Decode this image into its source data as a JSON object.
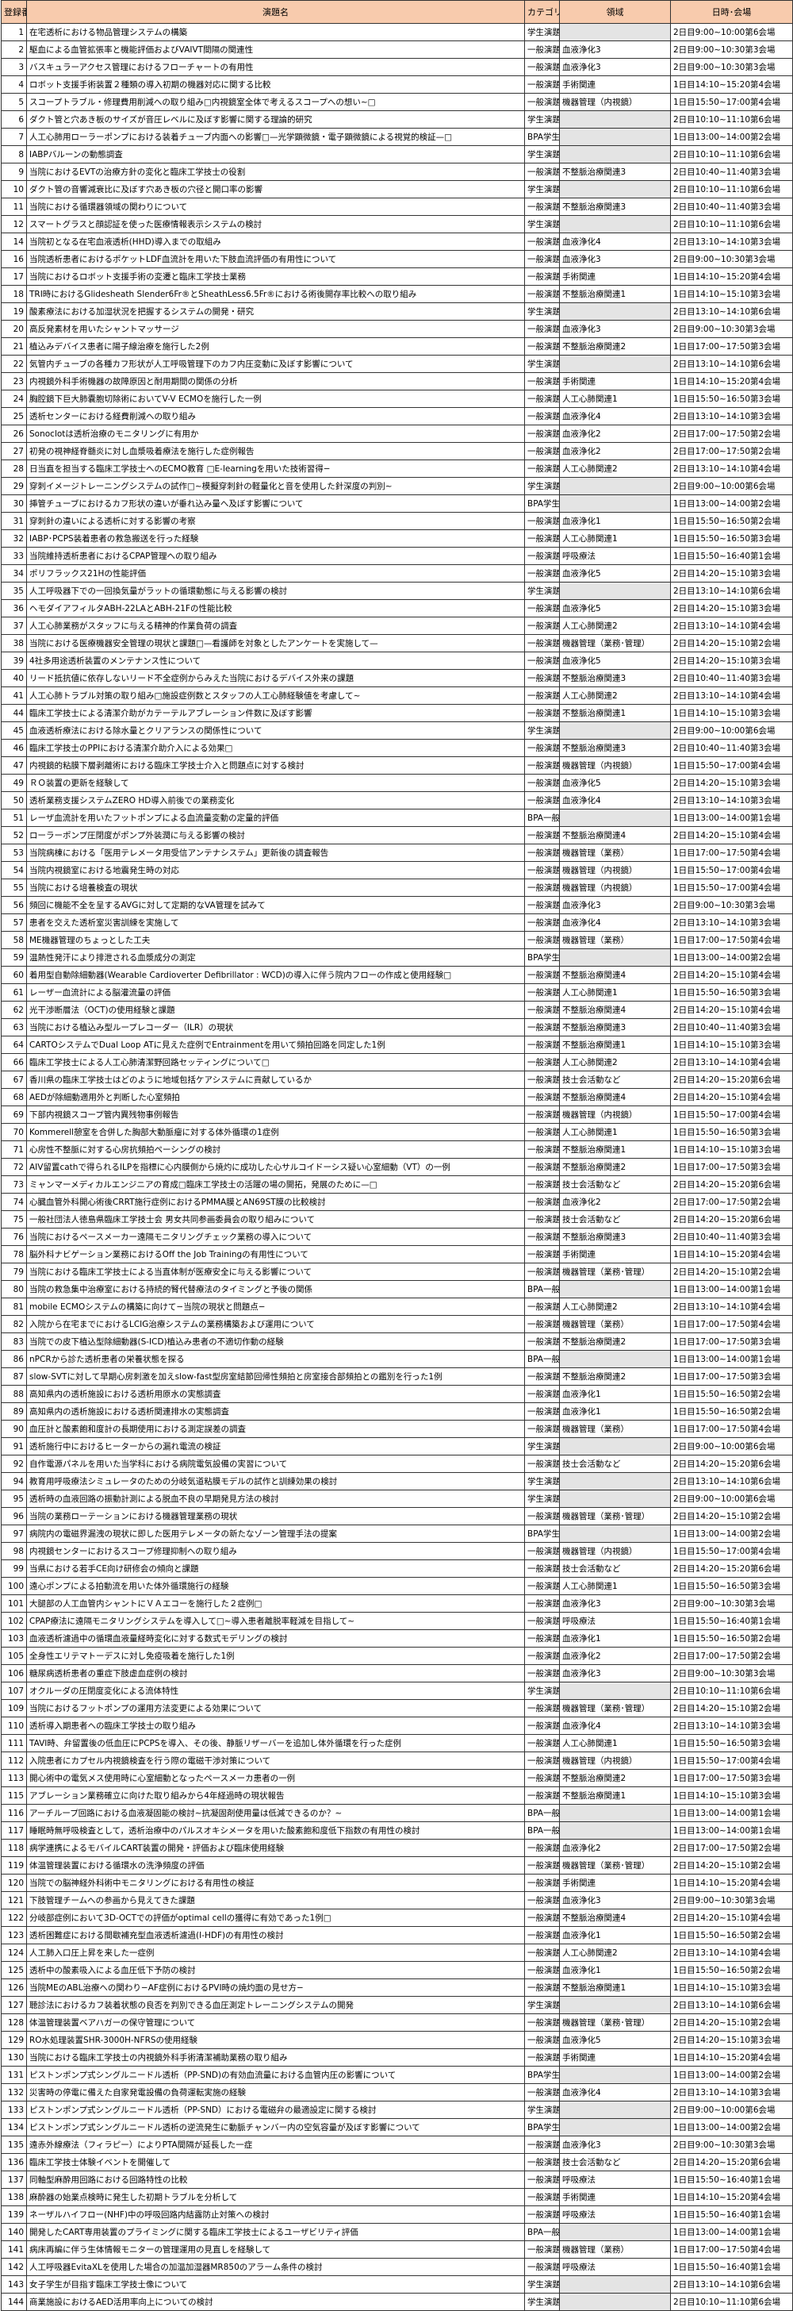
{
  "header": {
    "number": "登録番号",
    "title": "演題名",
    "category": "カテゴリー",
    "field": "領域",
    "datetime": "日時･会場"
  },
  "colors": {
    "header_bg": "#f8cbad",
    "empty_cell_bg": "#e4e4e4"
  },
  "rows": [
    [
      "1",
      "在宅透析における物品管理システムの構築",
      "学生演題",
      "",
      "2日目9:00~10:00第6会場"
    ],
    [
      "2",
      "駆血による血管拡張率と機能評価およびVAIVT間隔の関連性",
      "一般演題",
      "血液浄化3",
      "2日目9:00~10:30第3会場"
    ],
    [
      "3",
      "バスキュラーアクセス管理におけるフローチャートの有用性",
      "一般演題",
      "血液浄化3",
      "2日目9:00~10:30第3会場"
    ],
    [
      "4",
      "ロボット支援手術装置２種類の導入初期の機器対応に関する比較",
      "一般演題",
      "手術関連",
      "1日目14:10~15:20第4会場"
    ],
    [
      "5",
      "スコープトラブル・修理費用削減への取り組み□内視鏡室全体で考えるスコープへの想い~□",
      "一般演題",
      "機器管理（内視鏡）",
      "1日目15:50~17:00第4会場"
    ],
    [
      "6",
      "ダクト管と穴あき板のサイズが音圧レベルに及ぼす影響に関する理論的研究",
      "学生演題",
      "",
      "2日目10:10~11:10第6会場"
    ],
    [
      "7",
      "人工心肺用ローラーポンプにおける装着チューブ内面への影響□—光学顕微鏡・電子顕微鏡による視覚的検証—□",
      "BPA学生",
      "",
      "1日目13:00~14:00第2会場"
    ],
    [
      "8",
      "IABPバルーンの動態調査",
      "学生演題",
      "",
      "2日目10:10~11:10第6会場"
    ],
    [
      "9",
      "当院におけるEVTの治療方針の変化と臨床工学技士の役割",
      "一般演題",
      "不整脈治療関連3",
      "2日目10:40~11:40第3会場"
    ],
    [
      "10",
      "ダクト管の音響減衰比に及ぼす穴あき板の穴径と開口率の影響",
      "学生演題",
      "",
      "2日目10:10~11:10第6会場"
    ],
    [
      "11",
      "当院における循環器領域の関わりについて",
      "一般演題",
      "不整脈治療関連3",
      "2日目10:40~11:40第3会場"
    ],
    [
      "12",
      "スマートグラスと顔認証を使った医療情報表示システムの検討",
      "学生演題",
      "",
      "2日目10:10~11:10第6会場"
    ],
    [
      "14",
      "当院初となる在宅血液透析(HHD)導入までの取組み",
      "一般演題",
      "血液浄化4",
      "2日目13:10~14:10第3会場"
    ],
    [
      "16",
      "当院透析患者におけるポケットLDF血流計を用いた下肢血流評価の有用性について",
      "一般演題",
      "血液浄化3",
      "2日目9:00~10:30第3会場"
    ],
    [
      "17",
      "当院におけるロボット支援手術の変遷と臨床工学技士業務",
      "一般演題",
      "手術関連",
      "1日目14:10~15:20第4会場"
    ],
    [
      "18",
      "TRI時におけるGlidesheath Slender6Fr®とSheathLess6.5Fr®における術後開存率比較への取り組み",
      "一般演題",
      "不整脈治療関連1",
      "1日目14:10~15:10第3会場"
    ],
    [
      "19",
      "酸素療法における加湿状況を把握するシステムの開発・研究",
      "学生演題",
      "",
      "2日目13:10~14:10第6会場"
    ],
    [
      "20",
      "高反発素材を用いたシャントマッサージ",
      "一般演題",
      "血液浄化3",
      "2日目9:00~10:30第3会場"
    ],
    [
      "21",
      "植込みデバイス患者に陽子線治療を施行した2例",
      "一般演題",
      "不整脈治療関連2",
      "1日目17:00~17:50第3会場"
    ],
    [
      "22",
      "気管内チューブの各種カフ形状が人工呼吸管理下のカフ内圧変動に及ぼす影響について",
      "学生演題",
      "",
      "2日目13:10~14:10第6会場"
    ],
    [
      "23",
      "内視鏡外科手術機器の故障原因と耐用期間の関係の分析",
      "一般演題",
      "手術関連",
      "1日目14:10~15:20第4会場"
    ],
    [
      "24",
      "胸腔鏡下巨大肺嚢胞切除術においてV-V ECMOを施行した一例",
      "一般演題",
      "人工心肺関連1",
      "1日目15:50~16:50第3会場"
    ],
    [
      "25",
      "透析センターにおける経費削減への取り組み",
      "一般演題",
      "血液浄化4",
      "2日目13:10~14:10第3会場"
    ],
    [
      "26",
      "Sonoclotは透析治療のモニタリングに有用か",
      "一般演題",
      "血液浄化2",
      "2日目17:00~17:50第2会場"
    ],
    [
      "27",
      "初発の視神経脊髄炎に対し血漿吸着療法を施行した症例報告",
      "一般演題",
      "血液浄化2",
      "2日目17:00~17:50第2会場"
    ],
    [
      "28",
      "日当直を担当する臨床工学技士へのECMO教育 □E-learningを用いた技術習得−",
      "一般演題",
      "人工心肺関連2",
      "2日目13:10~14:10第4会場"
    ],
    [
      "29",
      "穿刺イメージトレーニングシステムの試作□~模擬穿刺針の軽量化と音を使用した針深度の判別~",
      "学生演題",
      "",
      "2日目9:00~10:00第6会場"
    ],
    [
      "30",
      "挿管チューブにおけるカフ形状の違いが垂れ込み量へ及ぼす影響について",
      "BPA学生",
      "",
      "1日目13:00~14:00第2会場"
    ],
    [
      "31",
      "穿刺針の違いによる透析に対する影響の考察",
      "一般演題",
      "血液浄化1",
      "1日目15:50~16:50第2会場"
    ],
    [
      "32",
      "IABP･PCPS装着患者の救急搬送を行った経験",
      "一般演題",
      "人工心肺関連1",
      "1日目15:50~16:50第3会場"
    ],
    [
      "33",
      "当院維持透析患者におけるCPAP管理への取り組み",
      "一般演題",
      "呼吸療法",
      "1日目15:50~16:40第1会場"
    ],
    [
      "34",
      "ポリフラックス21Hの性能評価",
      "一般演題",
      "血液浄化5",
      "2日目14:20~15:10第3会場"
    ],
    [
      "35",
      "人工呼吸器下での一回換気量がラットの循環動態に与える影響の検討",
      "学生演題",
      "",
      "2日目13:10~14:10第6会場"
    ],
    [
      "36",
      "ヘモダイアフィルタABH-22LAとABH-21Fの性能比較",
      "一般演題",
      "血液浄化5",
      "2日目14:20~15:10第3会場"
    ],
    [
      "37",
      "人工心肺業務がスタッフに与える精神的作業負荷の調査",
      "一般演題",
      "人工心肺関連2",
      "2日目13:10~14:10第4会場"
    ],
    [
      "38",
      "当院における医療機器安全管理の現状と課題□—看護師を対象としたアンケートを実施して—",
      "一般演題",
      "機器管理（業務･管理）",
      "2日目14:20~15:10第2会場"
    ],
    [
      "39",
      "4社多用途透析装置のメンテナンス性について",
      "一般演題",
      "血液浄化5",
      "2日目14:20~15:10第3会場"
    ],
    [
      "40",
      "リード抵抗値に依存しないリード不全症例からみえた当院におけるデバイス外来の課題",
      "一般演題",
      "不整脈治療関連3",
      "2日目10:40~11:40第3会場"
    ],
    [
      "41",
      "人工心肺トラブル対策の取り組み□施設症例数とスタッフの人工心肺経験値を考慮して~",
      "一般演題",
      "人工心肺関連2",
      "2日目13:10~14:10第4会場"
    ],
    [
      "44",
      "臨床工学技士による清潔介助がカテーテルアブレーション件数に及ぼす影響",
      "一般演題",
      "不整脈治療関連1",
      "1日目14:10~15:10第3会場"
    ],
    [
      "45",
      "血液透析療法における除水量とクリアランスの関係性について",
      "学生演題",
      "",
      "2日目9:00~10:00第6会場"
    ],
    [
      "46",
      "臨床工学技士のPPIにおける清潔介助介入による効果□",
      "一般演題",
      "不整脈治療関連3",
      "2日目10:40~11:40第3会場"
    ],
    [
      "47",
      "内視鏡的粘膜下層剥離術における臨床工学技士介入と問題点に対する検討",
      "一般演題",
      "機器管理（内視鏡）",
      "1日目15:50~17:00第4会場"
    ],
    [
      "49",
      "ＲＯ装置の更新を経験して",
      "一般演題",
      "血液浄化5",
      "2日目14:20~15:10第3会場"
    ],
    [
      "50",
      "透析業務支援システムZERO HD導入前後での業務変化",
      "一般演題",
      "血液浄化4",
      "2日目13:10~14:10第3会場"
    ],
    [
      "51",
      "レーザ血流計を用いたフットポンプによる血流量変動の定量的評価",
      "BPA一般",
      "",
      "1日目13:00~14:00第1会場"
    ],
    [
      "52",
      "ローラーポンプ圧閉度がポンプ外装潤に与える影響の検討",
      "一般演題",
      "不整脈治療関連4",
      "2日目14:20~15:10第4会場"
    ],
    [
      "53",
      "当院病棟における「医用テレメータ用受信アンテナシステム」更新後の調査報告",
      "一般演題",
      "機器管理（業務）",
      "1日目17:00~17:50第4会場"
    ],
    [
      "54",
      "当院内視鏡室における地震発生時の対応",
      "一般演題",
      "機器管理（内視鏡）",
      "1日目15:50~17:00第4会場"
    ],
    [
      "55",
      "当院における培養検査の現状",
      "一般演題",
      "機器管理（内視鏡）",
      "1日目15:50~17:00第4会場"
    ],
    [
      "56",
      "頻回に機能不全を呈するAVGに対して定期的なVA管理を試みて",
      "一般演題",
      "血液浄化3",
      "2日目9:00~10:30第3会場"
    ],
    [
      "57",
      "患者を交えた透析室災害訓練を実施して",
      "一般演題",
      "血液浄化4",
      "2日目13:10~14:10第3会場"
    ],
    [
      "58",
      "ME機器管理のちょっとした工夫",
      "一般演題",
      "機器管理（業務）",
      "1日目17:00~17:50第4会場"
    ],
    [
      "59",
      "温熱性発汗により排泄される血漿成分の測定",
      "BPA学生",
      "",
      "1日目13:00~14:00第2会場"
    ],
    [
      "60",
      "着用型自動除細動器(Wearable Cardioverter Defibrillator : WCD)の導入に伴う院内フローの作成と使用経験□",
      "一般演題",
      "不整脈治療関連4",
      "2日目14:20~15:10第4会場"
    ],
    [
      "61",
      "レーザー血流計による脳灌流量の評価",
      "一般演題",
      "人工心肺関連1",
      "1日目15:50~16:50第3会場"
    ],
    [
      "62",
      "光干渉断層法（OCT)の使用経験と課題",
      "一般演題",
      "不整脈治療関連4",
      "2日目14:20~15:10第4会場"
    ],
    [
      "63",
      "当院における植込み型ループレコーダー（ILR）の現状",
      "一般演題",
      "不整脈治療関連3",
      "2日目10:40~11:40第3会場"
    ],
    [
      "64",
      "CARTOシステムでDual Loop ATに見えた症例でEntrainmentを用いて頻拍回路を同定した1例",
      "一般演題",
      "不整脈治療関連1",
      "1日目14:10~15:10第3会場"
    ],
    [
      "66",
      "臨床工学技士による人工心肺清潔野回路セッティングについて□",
      "一般演題",
      "人工心肺関連2",
      "2日目13:10~14:10第4会場"
    ],
    [
      "67",
      "香川県の臨床工学技士はどのように地域包括ケアシステムに貢献しているか",
      "一般演題",
      "技士会活動など",
      "2日目14:20~15:20第6会場"
    ],
    [
      "68",
      "AEDが除細動適用外と判断した心室頻拍",
      "一般演題",
      "不整脈治療関連4",
      "2日目14:20~15:10第4会場"
    ],
    [
      "69",
      "下部内視鏡スコープ管内異残物事例報告",
      "一般演題",
      "機器管理（内視鏡）",
      "1日目15:50~17:00第4会場"
    ],
    [
      "70",
      "Kommerell憩室を合併した胸部大動脈瘤に対する体外循環の1症例",
      "一般演題",
      "人工心肺関連1",
      "1日目15:50~16:50第3会場"
    ],
    [
      "71",
      "心房性不整脈に対する心房抗頻拍ペーシングの検討",
      "一般演題",
      "不整脈治療関連1",
      "1日目14:10~15:10第3会場"
    ],
    [
      "72",
      "AIV留置cathで得られるILPを指標に心内膜側から焼灼に成功した心サルコイドーシス疑い心室細動（VT）の一例",
      "一般演題",
      "不整脈治療関連2",
      "1日目17:00~17:50第3会場"
    ],
    [
      "73",
      "ミャンマーメディカルエンジニアの育成□臨床工学技士の活躍の場の開拓，発展のために—□",
      "一般演題",
      "技士会活動など",
      "2日目14:20~15:20第6会場"
    ],
    [
      "74",
      "心臓血管外科開心術後CRRT施行症例におけるPMMA膜とAN69ST膜の比較検討",
      "一般演題",
      "血液浄化2",
      "2日目17:00~17:50第2会場"
    ],
    [
      "75",
      "一般社団法人徳島県臨床工学技士会 男女共同参画委員会の取り組みについて",
      "一般演題",
      "技士会活動など",
      "2日目14:20~15:20第6会場"
    ],
    [
      "76",
      "当院におけるペースメーカー遠隔モニタリングチェック業務の導入について",
      "一般演題",
      "不整脈治療関連3",
      "2日目10:40~11:40第3会場"
    ],
    [
      "78",
      "脳外科ナビゲーション業務におけるOff the Job Trainingの有用性について",
      "一般演題",
      "手術関連",
      "1日目14:10~15:20第4会場"
    ],
    [
      "79",
      "当院における臨床工学技士による当直体制が医療安全に与える影響について",
      "一般演題",
      "機器管理（業務･管理）",
      "2日目14:20~15:10第2会場"
    ],
    [
      "80",
      "当院の救急集中治療室における持続的腎代替療法のタイミングと予後の関係",
      "BPA一般",
      "",
      "1日目13:00~14:00第1会場"
    ],
    [
      "81",
      "mobile ECMOシステムの構築に向けて−当院の現状と問題点−",
      "一般演題",
      "人工心肺関連2",
      "2日目13:10~14:10第4会場"
    ],
    [
      "82",
      "入院から在宅までにおけるLCIG治療システムの業務構築および運用について",
      "一般演題",
      "機器管理（業務）",
      "1日目17:00~17:50第4会場"
    ],
    [
      "83",
      "当院での皮下植込型除細動器(S-ICD)植込み患者の不適切作動の経験",
      "一般演題",
      "不整脈治療関連2",
      "1日目17:00~17:50第3会場"
    ],
    [
      "86",
      "nPCRから診た透析患者の栄養状態を探る",
      "BPA一般",
      "",
      "1日目13:00~14:00第1会場"
    ],
    [
      "87",
      "slow-SVTに対して早期心房刺激を加えslow-fast型房室結節回帰性頻拍と房室接合部頻拍との鑑別を行った1例",
      "一般演題",
      "不整脈治療関連2",
      "1日目17:00~17:50第3会場"
    ],
    [
      "88",
      "高知県内の透析施設における透析用原水の実態調査",
      "一般演題",
      "血液浄化1",
      "1日目15:50~16:50第2会場"
    ],
    [
      "89",
      "高知県内の透析施設における透析関連排水の実態調査",
      "一般演題",
      "血液浄化1",
      "1日目15:50~16:50第2会場"
    ],
    [
      "90",
      "血圧計と酸素飽和度計の長期使用における測定誤差の調査",
      "一般演題",
      "機器管理（業務）",
      "1日目17:00~17:50第4会場"
    ],
    [
      "91",
      "透析施行中におけるヒーターからの漏れ電流の検証",
      "学生演題",
      "",
      "2日目9:00~10:00第6会場"
    ],
    [
      "92",
      "自作電源パネルを用いた当学科における病院電気設備の実習について",
      "一般演題",
      "技士会活動など",
      "2日目14:20~15:20第6会場"
    ],
    [
      "94",
      "教育用呼吸療法シミュレータのための分岐気道粘膜モデルの試作と訓練効果の検討",
      "学生演題",
      "",
      "2日目13:10~14:10第6会場"
    ],
    [
      "95",
      "透析時の血液回路の振動計測による脱血不良の早期発見方法の検討",
      "学生演題",
      "",
      "2日目9:00~10:00第6会場"
    ],
    [
      "96",
      "当院の業務ローテーションにおける機器管理業務の現状",
      "一般演題",
      "機器管理（業務･管理）",
      "2日目14:20~15:10第2会場"
    ],
    [
      "97",
      "病院内の電磁界漏洩の現状に即した医用テレメータの新たなゾーン管理手法の提案",
      "BPA学生",
      "",
      "1日目13:00~14:00第2会場"
    ],
    [
      "98",
      "内視鏡センターにおけるスコープ修理抑制への取り組み",
      "一般演題",
      "機器管理（内視鏡）",
      "1日目15:50~17:00第4会場"
    ],
    [
      "99",
      "当県における若手CE向け研修会の傾向と課題",
      "一般演題",
      "技士会活動など",
      "2日目14:20~15:20第6会場"
    ],
    [
      "100",
      "遠心ポンプによる拍動流を用いた体外循環施行の経験",
      "一般演題",
      "人工心肺関連1",
      "1日目15:50~16:50第3会場"
    ],
    [
      "101",
      "大腿部の人工血管内シャントにＶＡエコーを施行した２症例□",
      "一般演題",
      "血液浄化3",
      "2日目9:00~10:30第3会場"
    ],
    [
      "102",
      "CPAP療法に遠隔モニタリングシステムを導入して□~導入患者離脱率軽減を目指して~",
      "一般演題",
      "呼吸療法",
      "1日目15:50~16:40第1会場"
    ],
    [
      "103",
      "血液透析濾過中の循環血液量経時変化に対する数式モデリングの検討",
      "一般演題",
      "血液浄化1",
      "1日目15:50~16:50第2会場"
    ],
    [
      "105",
      "全身性エリテマトーデスに対し免疫吸着を施行した1例",
      "一般演題",
      "血液浄化2",
      "2日目17:00~17:50第2会場"
    ],
    [
      "106",
      "糖尿病透析患者の重症下肢虚血症例の検討",
      "一般演題",
      "血液浄化3",
      "2日目9:00~10:30第3会場"
    ],
    [
      "107",
      "オクルーダの圧閉度変化による流体特性",
      "学生演題",
      "",
      "2日目10:10~11:10第6会場"
    ],
    [
      "109",
      "当院におけるフットポンプの運用方法変更による効果について",
      "一般演題",
      "機器管理（業務･管理）",
      "2日目14:20~15:10第2会場"
    ],
    [
      "110",
      "透析導入期患者への臨床工学技士の取り組み",
      "一般演題",
      "血液浄化4",
      "2日目13:10~14:10第3会場"
    ],
    [
      "111",
      "TAVI時、弁留置後の低血圧にPCPSを導入、その後、静脈リザーバーを追加し体外循環を行った症例",
      "一般演題",
      "人工心肺関連1",
      "1日目15:50~16:50第3会場"
    ],
    [
      "112",
      "入院患者にカプセル内視鏡検査を行う際の電磁干渉対策について",
      "一般演題",
      "機器管理（内視鏡）",
      "1日目15:50~17:00第4会場"
    ],
    [
      "113",
      "開心術中の電気メス使用時に心室細動となったペースメーカ患者の一例",
      "一般演題",
      "不整脈治療関連2",
      "1日目17:00~17:50第3会場"
    ],
    [
      "115",
      "アブレーション業務確立に向けた取り組みから4年経過時の現状報告",
      "一般演題",
      "不整脈治療関連1",
      "1日目14:10~15:10第3会場"
    ],
    [
      "116",
      "アーチループ回路における血液凝固能の検討~抗凝固剤使用量は低減できるのか？~",
      "BPA一般",
      "",
      "1日目13:00~14:00第1会場"
    ],
    [
      "117",
      "睡眠時無呼吸検査として，透析治療中のパルスオキシメータを用いた酸素飽和度低下指数の有用性の検討",
      "BPA一般",
      "",
      "1日目13:00~14:00第1会場"
    ],
    [
      "118",
      "病学連携によるモバイルCART装置の開発・評価および臨床使用経験",
      "一般演題",
      "血液浄化2",
      "2日目17:00~17:50第2会場"
    ],
    [
      "119",
      "体温管理装置における循環水の洗浄頻度の評価",
      "一般演題",
      "機器管理（業務･管理）",
      "2日目14:20~15:10第2会場"
    ],
    [
      "120",
      "当院での脳神経外科術中モニタリングにおける有用性の検証",
      "一般演題",
      "手術関連",
      "1日目14:10~15:20第4会場"
    ],
    [
      "121",
      "下肢管理チームへの参画から見えてきた課題",
      "一般演題",
      "血液浄化3",
      "2日目9:00~10:30第3会場"
    ],
    [
      "122",
      "分岐部症例において3D-OCTでの評価がoptimal cellの獲得に有効であった1例□",
      "一般演題",
      "不整脈治療関連4",
      "2日目14:20~15:10第4会場"
    ],
    [
      "123",
      "透析困難症における間歇補充型血液透析濾過(I-HDF)の有用性の検討",
      "一般演題",
      "血液浄化1",
      "1日目15:50~16:50第2会場"
    ],
    [
      "124",
      "人工肺入口圧上昇を来した一症例",
      "一般演題",
      "人工心肺関連2",
      "2日目13:10~14:10第4会場"
    ],
    [
      "125",
      "透析中の酸素吸入による血圧低下予防の検討",
      "一般演題",
      "血液浄化1",
      "1日目15:50~16:50第2会場"
    ],
    [
      "126",
      "当院MEのABL治療への関わり−AF症例におけるPVI時の焼灼面の見せ方−",
      "一般演題",
      "不整脈治療関連1",
      "1日目14:10~15:10第3会場"
    ],
    [
      "127",
      "聴診法におけるカフ装着状態の良否を判別できる血圧測定トレーニングシステムの開発",
      "学生演題",
      "",
      "2日目13:10~14:10第6会場"
    ],
    [
      "128",
      "体温管理装置ベアハガーの保守管理について",
      "一般演題",
      "機器管理（業務･管理）",
      "2日目14:20~15:10第2会場"
    ],
    [
      "129",
      "RO水処理装置SHR-3000H-NFRSの使用経験",
      "一般演題",
      "血液浄化5",
      "2日目14:20~15:10第3会場"
    ],
    [
      "130",
      "当院における臨床工学技士の内視鏡外科手術清潔補助業務の取り組み",
      "一般演題",
      "手術関連",
      "1日目14:10~15:20第4会場"
    ],
    [
      "131",
      "ピストンポンプ式シングルニードル透析（PP-SND)の有効血流量における血管内圧の影響について",
      "BPA学生",
      "",
      "1日目13:00~14:00第2会場"
    ],
    [
      "132",
      "災害時の停電に備えた自家発電設備の負荷運転実施の経験",
      "一般演題",
      "血液浄化4",
      "2日目13:10~14:10第3会場"
    ],
    [
      "133",
      "ピストンポンプ式シングルニードル透析（PP-SND）における電磁弁の最適設定に関する検討",
      "学生演題",
      "",
      "2日目9:00~10:00第6会場"
    ],
    [
      "134",
      "ピストンポンプ式シングルニードル透析の逆流発生に動脈チャンバー内の空気容量が及ぼす影響について",
      "BPA学生",
      "",
      "1日目13:00~14:00第2会場"
    ],
    [
      "135",
      "遠赤外線療法（フィラピー）によりPTA間隔が延長した一症",
      "一般演題",
      "血液浄化3",
      "2日目9:00~10:30第3会場"
    ],
    [
      "136",
      "臨床工学技士体験イベントを開催して",
      "一般演題",
      "技士会活動など",
      "2日目14:20~15:20第6会場"
    ],
    [
      "137",
      "同軸型麻酔用回路における回路特性の比較",
      "一般演題",
      "呼吸療法",
      "1日目15:50~16:40第1会場"
    ],
    [
      "138",
      "麻酔器の始業点検時に発生した初期トラブルを分析して",
      "一般演題",
      "手術関連",
      "1日目14:10~15:20第4会場"
    ],
    [
      "139",
      "ネーザルハイフロー(NHF)中の呼吸回路内結露防止対策への検討",
      "一般演題",
      "呼吸療法",
      "1日目15:50~16:40第1会場"
    ],
    [
      "140",
      "開発したCART専用装置のプライミングに関する臨床工学技士によるユーザビリティ評価",
      "BPA一般",
      "",
      "1日目13:00~14:00第1会場"
    ],
    [
      "141",
      "病床再編に伴う生体情報モニターの管理運用の見直しを経験して",
      "一般演題",
      "機器管理（業務）",
      "1日目17:00~17:50第4会場"
    ],
    [
      "142",
      "人工呼吸器EvitaXLを使用した場合の加温加湿器MR850のアラーム条件の検討",
      "一般演題",
      "呼吸療法",
      "1日目15:50~16:40第1会場"
    ],
    [
      "143",
      "女子学生が目指す臨床工学技士像について",
      "学生演題",
      "",
      "2日目13:10~14:10第6会場"
    ],
    [
      "144",
      "商業施設におけるAED活用率向上についての検討",
      "学生演題",
      "",
      "2日目10:10~11:10第6会場"
    ]
  ]
}
